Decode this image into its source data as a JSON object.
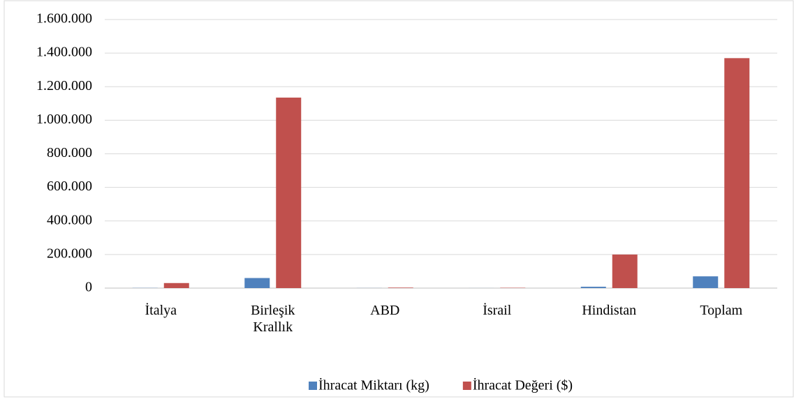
{
  "chart_data": {
    "type": "bar",
    "categories": [
      "İtalya",
      "Birleşik Krallık",
      "ABD",
      "İsrail",
      "Hindistan",
      "Toplam"
    ],
    "series": [
      {
        "name": "İhracat Miktarı (kg)",
        "color": "#4f81bd",
        "values": [
          1000,
          60000,
          500,
          200,
          8000,
          70000
        ]
      },
      {
        "name": "İhracat Değeri ($)",
        "color": "#c0504d",
        "values": [
          30000,
          1135000,
          3000,
          2000,
          200000,
          1370000
        ]
      }
    ],
    "ylim": [
      0,
      1600000
    ],
    "yticks": [
      0,
      {
        "value": 200000,
        "label": "200.000"
      },
      {
        "value": 400000,
        "label": "400.000"
      },
      {
        "value": 600000,
        "label": "600.000"
      },
      {
        "value": 800000,
        "label": "800.000"
      },
      {
        "value": 1000000,
        "label": "1.000.000"
      },
      {
        "value": 1200000,
        "label": "1.200.000"
      },
      {
        "value": 1400000,
        "label": "1.400.000"
      },
      {
        "value": 1600000,
        "label": "1.600.000"
      }
    ],
    "grid": true,
    "legend": "bottom"
  }
}
